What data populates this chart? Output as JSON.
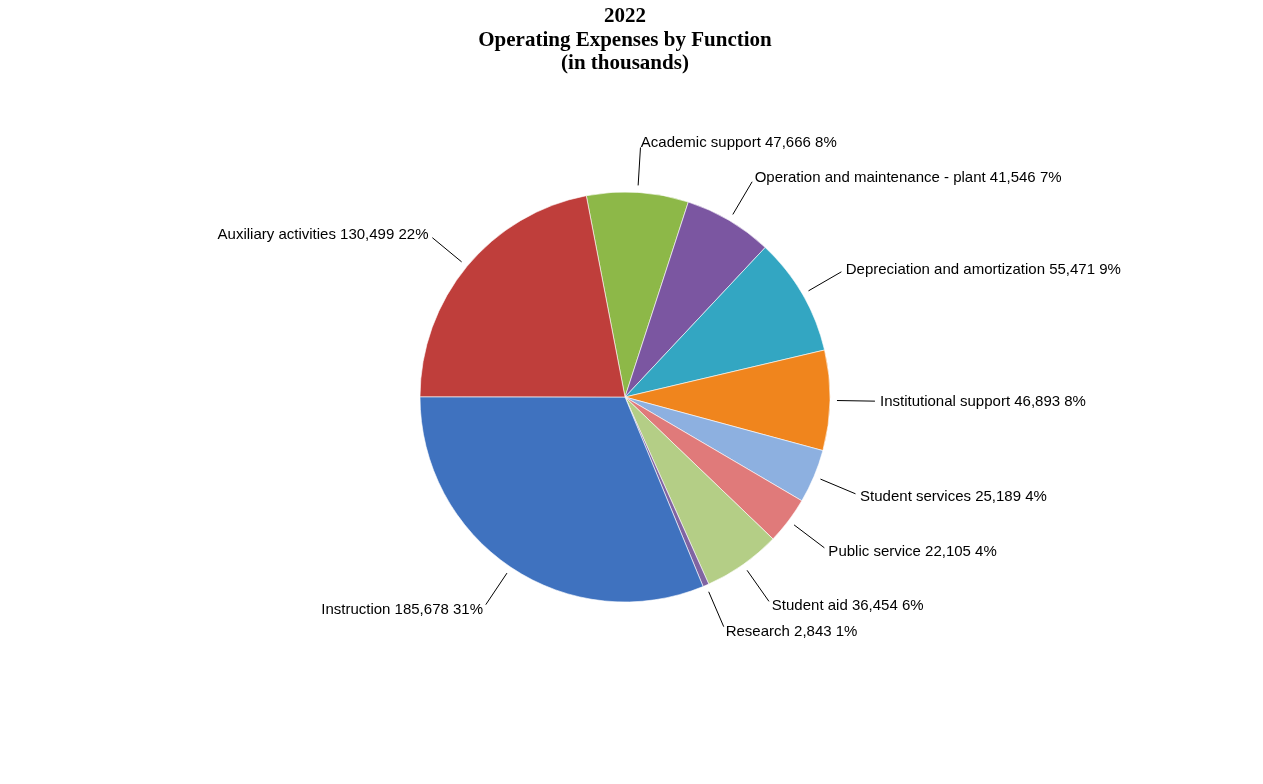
{
  "chart_data": {
    "type": "pie",
    "title": "2022",
    "subtitle": "Operating Expenses by Function\n(in thousands)",
    "categories": [
      "Academic support",
      "Operation and maintenance - plant",
      "Depreciation and amortization",
      "Institutional support",
      "Student services",
      "Public service",
      "Student aid",
      "Research",
      "Instruction",
      "Auxiliary activities"
    ],
    "values": [
      47666,
      41546,
      55471,
      46893,
      25189,
      22105,
      36454,
      2843,
      185678,
      130499
    ],
    "value_labels": [
      "47,666  8%",
      "41,546  7%",
      "55,471  9%",
      "46,893  8%",
      "25,189  4%",
      "22,105 4%",
      "36,454  6%",
      "2,843  1%",
      "185,678  31%",
      "130,499  22%"
    ],
    "colors": [
      "#8db848",
      "#7b56a1",
      "#33a6c2",
      "#f0851d",
      "#8db0e0",
      "#e07a7a",
      "#b4ce86",
      "#8064a2",
      "#3f72bf",
      "#bf3e3b"
    ],
    "legend": false
  }
}
